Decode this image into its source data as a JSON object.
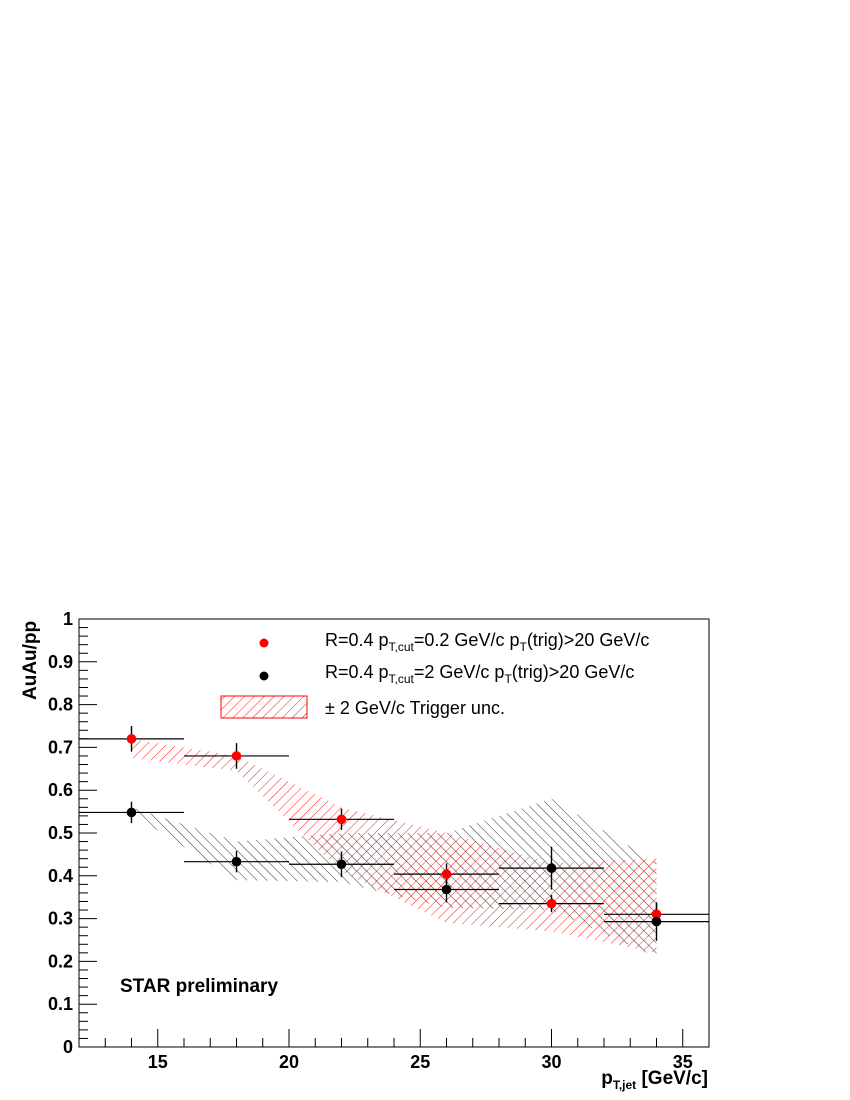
{
  "chart_data": {
    "type": "scatter",
    "title": "",
    "xlabel": {
      "main": "p",
      "sub": "T,jet",
      "rest": " [GeV/c]"
    },
    "ylabel": "AuAu/pp",
    "xlim": [
      12,
      36
    ],
    "ylim": [
      0,
      1
    ],
    "x_major_ticks": [
      15,
      20,
      25,
      30,
      35
    ],
    "y_major_ticks": [
      0,
      0.1,
      0.2,
      0.3,
      0.4,
      0.5,
      0.6,
      0.7,
      0.8,
      0.9,
      1
    ],
    "x_tick_labels": [
      "15",
      "20",
      "25",
      "30",
      "35"
    ],
    "y_tick_labels": [
      "0",
      "0.1",
      "0.2",
      "0.3",
      "0.4",
      "0.5",
      "0.6",
      "0.7",
      "0.8",
      "0.9",
      "1"
    ],
    "grid": false,
    "legend_position": "top-right",
    "annotation": "STAR preliminary",
    "series": [
      {
        "name": "R=0.4 p_{T,cut}=0.2 GeV/c p_{T}(trig)>20 GeV/c",
        "legend": {
          "prefix": "R=0.4 p",
          "sub1": "T,cut",
          "mid": "=0.2 GeV/c p",
          "sub2": "T",
          "suffix": "(trig)>20 GeV/c"
        },
        "color": "#ff0000",
        "x": [
          14,
          18,
          22,
          26,
          30,
          34
        ],
        "y": [
          0.72,
          0.68,
          0.532,
          0.404,
          0.335,
          0.31
        ],
        "y_err": [
          0.03,
          0.03,
          0.025,
          0.025,
          0.02,
          0.025
        ],
        "bin_lo": [
          12,
          16,
          20,
          24,
          28,
          32
        ],
        "bin_hi": [
          16,
          20,
          24,
          28,
          32,
          36
        ],
        "band_x": [
          14,
          18,
          22,
          26,
          30,
          34
        ],
        "band_lo": [
          0.675,
          0.645,
          0.41,
          0.29,
          0.27,
          0.22
        ],
        "band_hi": [
          0.72,
          0.68,
          0.56,
          0.5,
          0.43,
          0.44
        ]
      },
      {
        "name": "R=0.4 p_{T,cut}=2 GeV/c p_{T}(trig)>20 GeV/c",
        "legend": {
          "prefix": "R=0.4 p",
          "sub1": "T,cut",
          "mid": "=2 GeV/c p",
          "sub2": "T",
          "suffix": "(trig)>20 GeV/c"
        },
        "color": "#000000",
        "x": [
          14,
          18,
          22,
          26,
          30,
          34
        ],
        "y": [
          0.548,
          0.433,
          0.427,
          0.368,
          0.418,
          0.293
        ],
        "y_err": [
          0.025,
          0.025,
          0.03,
          0.03,
          0.05,
          0.045
        ],
        "bin_lo": [
          12,
          16,
          20,
          24,
          28,
          32
        ],
        "bin_hi": [
          16,
          20,
          24,
          28,
          32,
          36
        ],
        "band_x": [
          14,
          18,
          22,
          26,
          30,
          34
        ],
        "band_lo": [
          0.545,
          0.39,
          0.385,
          0.325,
          0.32,
          0.21
        ],
        "band_hi": [
          0.56,
          0.48,
          0.5,
          0.5,
          0.58,
          0.43
        ]
      }
    ],
    "band_legend": {
      "label": "± 2 GeV/c Trigger unc.",
      "color": "#ff0000"
    }
  }
}
